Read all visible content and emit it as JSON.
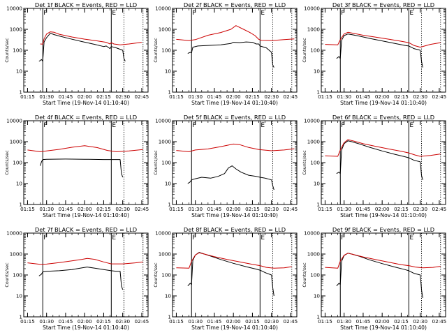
{
  "figure": {
    "ylabel": "Counts/sec",
    "xlabel": "Start Time (19-Nov-14 01:10:40)"
  },
  "chart_data": [
    {
      "type": "line",
      "title": "Det 1f BLACK = Events, RED = LLD",
      "xlabel": "Start Time (19-Nov-14 01:10:40)",
      "ylabel": "Counts/sec",
      "yscale": "log",
      "ylim": [
        1,
        10000
      ],
      "x_ticks": [
        "01:15",
        "01:30",
        "01:45",
        "02:00",
        "02:15",
        "02:30",
        "02:45"
      ],
      "y_ticks": [
        "1",
        "10",
        "100",
        "1000",
        "10000"
      ],
      "solid_markers": [
        "01:27",
        "02:21"
      ],
      "dotted_markers": [
        "02:31",
        "02:46"
      ],
      "marker_letters": [
        "F",
        "E"
      ],
      "series": [
        {
          "color": "#000000",
          "x": [
            "01:24",
            "01:25",
            "01:26",
            "01:27",
            "01:28",
            "01:30",
            "01:33",
            "01:36",
            "01:40",
            "01:48",
            "01:58",
            "02:08",
            "02:15",
            "02:17",
            "02:20",
            "02:21",
            "02:25",
            "02:30",
            "02:31",
            "02:32"
          ],
          "y": [
            30,
            32,
            36,
            30,
            250,
            400,
            650,
            560,
            480,
            360,
            260,
            190,
            150,
            160,
            120,
            150,
            130,
            100,
            40,
            30
          ]
        },
        {
          "color": "#cc0000",
          "x": [
            "01:25",
            "01:27",
            "01:28",
            "01:30",
            "01:33",
            "01:36",
            "01:40",
            "01:50",
            "02:00",
            "02:10",
            "02:17",
            "02:20",
            "02:21",
            "02:23",
            "02:28",
            "02:35",
            "02:45"
          ],
          "y": [
            200,
            195,
            350,
            600,
            760,
            720,
            580,
            430,
            340,
            280,
            240,
            200,
            230,
            200,
            180,
            200,
            240
          ]
        }
      ]
    },
    {
      "type": "line",
      "title": "Det 2f BLACK = Events, RED = LLD",
      "xlabel": "Start Time (19-Nov-14 01:10:40)",
      "ylabel": "Counts/sec",
      "yscale": "log",
      "ylim": [
        1,
        10000
      ],
      "x_ticks": [
        "01:15",
        "01:30",
        "01:45",
        "02:00",
        "02:15",
        "02:30",
        "02:45"
      ],
      "y_ticks": [
        "1",
        "10",
        "100",
        "1000",
        "10000"
      ],
      "solid_markers": [
        "01:27",
        "02:21"
      ],
      "dotted_markers": [
        "02:31",
        "02:46"
      ],
      "marker_letters": [
        "F",
        "E"
      ],
      "series": [
        {
          "color": "#000000",
          "x": [
            "01:24",
            "01:26",
            "01:27",
            "01:28",
            "01:32",
            "01:40",
            "01:50",
            "01:58",
            "02:00",
            "02:05",
            "02:10",
            "02:15",
            "02:18",
            "02:20",
            "02:21",
            "02:26",
            "02:30",
            "02:31",
            "02:32"
          ],
          "y": [
            70,
            80,
            75,
            140,
            160,
            170,
            180,
            210,
            240,
            230,
            250,
            240,
            200,
            200,
            160,
            130,
            80,
            20,
            15
          ]
        },
        {
          "color": "#cc0000",
          "x": [
            "01:15",
            "01:25",
            "01:30",
            "01:40",
            "01:50",
            "01:58",
            "02:02",
            "02:08",
            "02:13",
            "02:17",
            "02:20",
            "02:22",
            "02:30",
            "02:40",
            "02:48"
          ],
          "y": [
            330,
            290,
            320,
            520,
            700,
            1000,
            1500,
            1000,
            700,
            500,
            330,
            300,
            290,
            320,
            350
          ]
        }
      ]
    },
    {
      "type": "line",
      "title": "Det 3f BLACK = Events, RED = LLD",
      "xlabel": "Start Time (19-Nov-14 01:10:40)",
      "ylabel": "Counts/sec",
      "yscale": "log",
      "ylim": [
        1,
        10000
      ],
      "x_ticks": [
        "01:15",
        "01:30",
        "01:45",
        "02:00",
        "02:15",
        "02:30",
        "02:45"
      ],
      "y_ticks": [
        "1",
        "10",
        "100",
        "1000",
        "10000"
      ],
      "solid_markers": [
        "01:27",
        "02:21"
      ],
      "dotted_markers": [
        "02:31",
        "02:46"
      ],
      "marker_letters": [
        "F",
        "E"
      ],
      "series": [
        {
          "color": "#000000",
          "x": [
            "01:24",
            "01:26",
            "01:27",
            "01:28",
            "01:30",
            "01:33",
            "01:36",
            "01:42",
            "01:50",
            "02:00",
            "02:10",
            "02:18",
            "02:21",
            "02:25",
            "02:30",
            "02:31",
            "02:32"
          ],
          "y": [
            40,
            50,
            40,
            300,
            500,
            600,
            560,
            470,
            370,
            280,
            210,
            170,
            160,
            120,
            100,
            30,
            15
          ]
        },
        {
          "color": "#cc0000",
          "x": [
            "01:15",
            "01:25",
            "01:27",
            "01:30",
            "01:33",
            "01:37",
            "01:45",
            "01:55",
            "02:05",
            "02:15",
            "02:21",
            "02:25",
            "02:30",
            "02:38",
            "02:46"
          ],
          "y": [
            190,
            180,
            320,
            600,
            720,
            650,
            520,
            420,
            340,
            270,
            230,
            170,
            140,
            190,
            230
          ]
        }
      ]
    },
    {
      "type": "line",
      "title": "Det 4f BLACK = Events, RED = LLD",
      "xlabel": "Start Time (19-Nov-14 01:10:40)",
      "ylabel": "Counts/sec",
      "yscale": "log",
      "ylim": [
        1,
        10000
      ],
      "x_ticks": [
        "01:15",
        "01:30",
        "01:45",
        "02:00",
        "02:15",
        "02:30",
        "02:45"
      ],
      "y_ticks": [
        "1",
        "10",
        "100",
        "1000",
        "10000"
      ],
      "solid_markers": [
        "01:27",
        "02:21"
      ],
      "dotted_markers": [
        "02:31",
        "02:46"
      ],
      "marker_letters": [
        "F",
        "E"
      ],
      "series": [
        {
          "color": "#000000",
          "x": [
            "01:25",
            "01:26",
            "01:27",
            "01:30",
            "01:45",
            "02:00",
            "02:15",
            "02:21",
            "02:25",
            "02:28",
            "02:29",
            "02:30"
          ],
          "y": [
            70,
            110,
            140,
            145,
            148,
            145,
            140,
            140,
            140,
            140,
            30,
            20
          ]
        },
        {
          "color": "#cc0000",
          "x": [
            "01:15",
            "01:25",
            "01:30",
            "01:40",
            "01:50",
            "02:00",
            "02:10",
            "02:18",
            "02:25",
            "02:35",
            "02:46"
          ],
          "y": [
            400,
            330,
            360,
            430,
            540,
            640,
            520,
            380,
            330,
            360,
            420
          ]
        }
      ]
    },
    {
      "type": "line",
      "title": "Det 5f BLACK = Events, RED = LLD",
      "xlabel": "Start Time (19-Nov-14 01:10:40)",
      "ylabel": "Counts/sec",
      "yscale": "log",
      "ylim": [
        1,
        10000
      ],
      "x_ticks": [
        "01:15",
        "01:30",
        "01:45",
        "02:00",
        "02:15",
        "02:30",
        "02:45"
      ],
      "y_ticks": [
        "1",
        "10",
        "100",
        "1000",
        "10000"
      ],
      "solid_markers": [
        "01:27",
        "02:21"
      ],
      "dotted_markers": [
        "02:31",
        "02:46"
      ],
      "marker_letters": [
        "F",
        "E"
      ],
      "series": [
        {
          "color": "#000000",
          "x": [
            "01:24",
            "01:26",
            "01:27",
            "01:30",
            "01:35",
            "01:42",
            "01:48",
            "01:53",
            "01:56",
            "01:59",
            "02:02",
            "02:06",
            "02:12",
            "02:18",
            "02:21",
            "02:25",
            "02:30",
            "02:31",
            "02:32"
          ],
          "y": [
            10,
            12,
            15,
            17,
            20,
            18,
            22,
            30,
            55,
            70,
            50,
            35,
            25,
            22,
            20,
            18,
            15,
            8,
            5
          ]
        },
        {
          "color": "#cc0000",
          "x": [
            "01:15",
            "01:25",
            "01:30",
            "01:40",
            "01:50",
            "02:00",
            "02:05",
            "02:12",
            "02:20",
            "02:30",
            "02:40",
            "02:48"
          ],
          "y": [
            380,
            330,
            400,
            450,
            580,
            770,
            720,
            530,
            420,
            370,
            400,
            460
          ]
        }
      ]
    },
    {
      "type": "line",
      "title": "Det 6f BLACK = Events, RED = LLD",
      "xlabel": "Start Time (19-Nov-14 01:10:40)",
      "ylabel": "Counts/sec",
      "yscale": "log",
      "ylim": [
        1,
        10000
      ],
      "x_ticks": [
        "01:15",
        "01:30",
        "01:45",
        "02:00",
        "02:15",
        "02:30",
        "02:45"
      ],
      "y_ticks": [
        "1",
        "10",
        "100",
        "1000",
        "10000"
      ],
      "solid_markers": [
        "01:27",
        "02:21"
      ],
      "dotted_markers": [
        "02:31",
        "02:46"
      ],
      "marker_letters": [
        "F",
        "E"
      ],
      "series": [
        {
          "color": "#000000",
          "x": [
            "01:24",
            "01:26",
            "01:27",
            "01:28",
            "01:30",
            "01:33",
            "01:36",
            "01:42",
            "01:50",
            "02:00",
            "02:10",
            "02:18",
            "02:21",
            "02:25",
            "02:30",
            "02:31",
            "02:32"
          ],
          "y": [
            30,
            35,
            30,
            400,
            800,
            1100,
            1000,
            780,
            540,
            360,
            250,
            190,
            170,
            130,
            110,
            25,
            15
          ]
        },
        {
          "color": "#cc0000",
          "x": [
            "01:15",
            "01:25",
            "01:27",
            "01:30",
            "01:33",
            "01:37",
            "01:45",
            "01:55",
            "02:05",
            "02:15",
            "02:21",
            "02:26",
            "02:30",
            "02:38",
            "02:46"
          ],
          "y": [
            210,
            200,
            400,
            900,
            1250,
            1100,
            800,
            600,
            450,
            350,
            290,
            230,
            200,
            220,
            260
          ]
        }
      ]
    },
    {
      "type": "line",
      "title": "Det 7f BLACK = Events, RED = LLD",
      "xlabel": "Start Time (19-Nov-14 01:10:40)",
      "ylabel": "Counts/sec",
      "yscale": "log",
      "ylim": [
        1,
        10000
      ],
      "x_ticks": [
        "01:15",
        "01:30",
        "01:45",
        "02:00",
        "02:15",
        "02:30",
        "02:45"
      ],
      "y_ticks": [
        "1",
        "10",
        "100",
        "1000",
        "10000"
      ],
      "solid_markers": [
        "01:27",
        "02:21"
      ],
      "dotted_markers": [
        "02:31",
        "02:46"
      ],
      "marker_letters": [
        "F",
        "E"
      ],
      "series": [
        {
          "color": "#000000",
          "x": [
            "01:24",
            "01:26",
            "01:27",
            "01:30",
            "01:40",
            "01:50",
            "01:58",
            "02:02",
            "02:08",
            "02:15",
            "02:21",
            "02:25",
            "02:28",
            "02:29",
            "02:30"
          ],
          "y": [
            90,
            110,
            140,
            150,
            160,
            180,
            220,
            240,
            210,
            180,
            160,
            150,
            150,
            30,
            20
          ]
        },
        {
          "color": "#cc0000",
          "x": [
            "01:15",
            "01:25",
            "01:30",
            "01:40",
            "01:50",
            "01:58",
            "02:02",
            "02:08",
            "02:15",
            "02:21",
            "02:30",
            "02:40",
            "02:46"
          ],
          "y": [
            380,
            320,
            330,
            390,
            470,
            560,
            620,
            560,
            420,
            340,
            340,
            380,
            420
          ]
        }
      ]
    },
    {
      "type": "line",
      "title": "Det 8f BLACK = Events, RED = LLD",
      "xlabel": "Start Time (19-Nov-14 01:10:40)",
      "ylabel": "Counts/sec",
      "yscale": "log",
      "ylim": [
        1,
        10000
      ],
      "x_ticks": [
        "01:15",
        "01:30",
        "01:45",
        "02:00",
        "02:15",
        "02:30",
        "02:45"
      ],
      "y_ticks": [
        "1",
        "10",
        "100",
        "1000",
        "10000"
      ],
      "solid_markers": [
        "01:27",
        "02:21"
      ],
      "dotted_markers": [
        "02:31",
        "02:46"
      ],
      "marker_letters": [
        "F",
        "E"
      ],
      "series": [
        {
          "color": "#000000",
          "x": [
            "01:24",
            "01:26",
            "01:27",
            "01:28",
            "01:30",
            "01:33",
            "01:36",
            "01:42",
            "01:50",
            "02:00",
            "02:10",
            "02:18",
            "02:21",
            "02:25",
            "02:30",
            "02:31",
            "02:32"
          ],
          "y": [
            30,
            40,
            35,
            500,
            900,
            1200,
            1050,
            800,
            550,
            360,
            250,
            190,
            170,
            130,
            100,
            25,
            10
          ]
        },
        {
          "color": "#cc0000",
          "x": [
            "01:15",
            "01:25",
            "01:27",
            "01:30",
            "01:33",
            "01:37",
            "01:45",
            "01:55",
            "02:05",
            "02:15",
            "02:21",
            "02:26",
            "02:32",
            "02:40",
            "02:46"
          ],
          "y": [
            220,
            210,
            450,
            900,
            1150,
            1000,
            750,
            550,
            420,
            320,
            280,
            230,
            210,
            220,
            250
          ]
        }
      ]
    },
    {
      "type": "line",
      "title": "Det 9f BLACK = Events, RED = LLD",
      "xlabel": "Start Time (19-Nov-14 01:10:40)",
      "ylabel": "Counts/sec",
      "yscale": "log",
      "ylim": [
        1,
        10000
      ],
      "x_ticks": [
        "01:15",
        "01:30",
        "01:45",
        "02:00",
        "02:15",
        "02:30",
        "02:45"
      ],
      "y_ticks": [
        "1",
        "10",
        "100",
        "1000",
        "10000"
      ],
      "solid_markers": [
        "01:27",
        "02:21"
      ],
      "dotted_markers": [
        "02:31",
        "02:46"
      ],
      "marker_letters": [
        "F",
        "E"
      ],
      "series": [
        {
          "color": "#000000",
          "x": [
            "01:24",
            "01:26",
            "01:27",
            "01:28",
            "01:30",
            "01:33",
            "01:36",
            "01:42",
            "01:50",
            "02:00",
            "02:10",
            "02:18",
            "02:21",
            "02:25",
            "02:30",
            "02:31",
            "02:32"
          ],
          "y": [
            30,
            40,
            35,
            450,
            850,
            1100,
            1000,
            780,
            530,
            350,
            240,
            180,
            160,
            120,
            100,
            20,
            8
          ]
        },
        {
          "color": "#cc0000",
          "x": [
            "01:15",
            "01:25",
            "01:27",
            "01:30",
            "01:33",
            "01:37",
            "01:45",
            "01:55",
            "02:05",
            "02:15",
            "02:21",
            "02:26",
            "02:32",
            "02:40",
            "02:46"
          ],
          "y": [
            230,
            210,
            460,
            880,
            1100,
            960,
            730,
            540,
            410,
            310,
            280,
            240,
            220,
            230,
            260
          ]
        }
      ]
    }
  ]
}
